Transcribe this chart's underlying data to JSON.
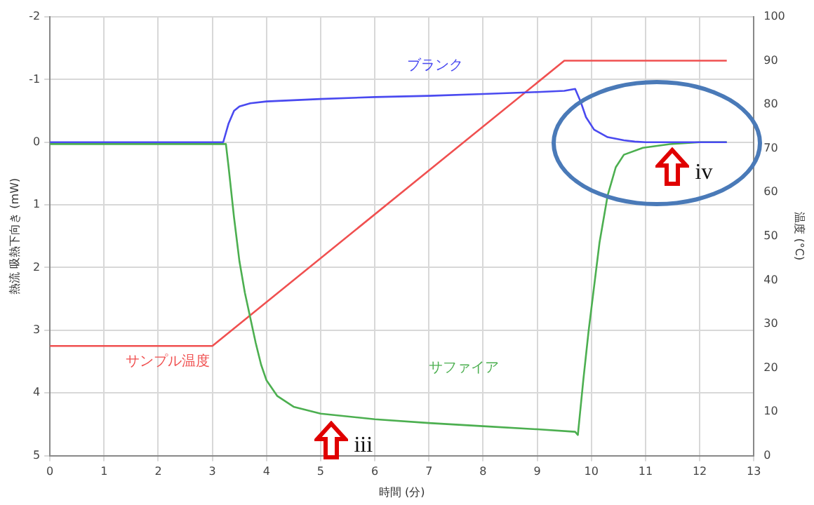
{
  "chart_data": {
    "type": "line",
    "xlabel": "時間 (分)",
    "ylabel": "熱流 吸熱下向き (mW)",
    "y2label": "温度 (°C)",
    "xlim": [
      0,
      13
    ],
    "xticks": [
      0,
      1,
      2,
      3,
      4,
      5,
      6,
      7,
      8,
      9,
      10,
      11,
      12,
      13
    ],
    "ylim": [
      5,
      -2
    ],
    "yticks": [
      -2,
      -1,
      0,
      1,
      2,
      3,
      4,
      5
    ],
    "y2lim": [
      0,
      100
    ],
    "y2ticks": [
      0,
      10,
      20,
      30,
      40,
      50,
      60,
      70,
      80,
      90,
      100
    ],
    "grid": true,
    "legend": false,
    "marker": "none",
    "line_style": "solid",
    "series": [
      {
        "name": "ブランク",
        "color": "#4a4af0",
        "axis": "y",
        "x": [
          0,
          1,
          2,
          3,
          3.2,
          3.3,
          3.4,
          3.5,
          3.7,
          4,
          5,
          6,
          7,
          8,
          9,
          9.5,
          9.7,
          9.8,
          9.9,
          10.05,
          10.3,
          10.6,
          10.8,
          11,
          12,
          12.5
        ],
        "values": [
          0,
          0,
          0,
          0,
          0,
          -0.3,
          -0.5,
          -0.57,
          -0.62,
          -0.65,
          -0.69,
          -0.72,
          -0.74,
          -0.77,
          -0.8,
          -0.82,
          -0.85,
          -0.65,
          -0.4,
          -0.2,
          -0.08,
          -0.03,
          -0.01,
          0,
          0,
          0
        ]
      },
      {
        "name": "サファイア",
        "color": "#4caf50",
        "axis": "y",
        "x": [
          0,
          1,
          2,
          3,
          3.25,
          3.3,
          3.4,
          3.5,
          3.6,
          3.7,
          3.8,
          3.9,
          4,
          4.2,
          4.5,
          5,
          6,
          7,
          8,
          9,
          9.7,
          9.75,
          9.85,
          9.95,
          10.05,
          10.15,
          10.3,
          10.45,
          10.6,
          10.95,
          11.45,
          12,
          12.5
        ],
        "values": [
          0.03,
          0.03,
          0.03,
          0.03,
          0.03,
          0.4,
          1.2,
          1.9,
          2.4,
          2.8,
          3.2,
          3.55,
          3.8,
          4.05,
          4.22,
          4.33,
          4.42,
          4.48,
          4.53,
          4.58,
          4.62,
          4.67,
          3.8,
          3,
          2.3,
          1.6,
          0.85,
          0.4,
          0.2,
          0.09,
          0.03,
          0,
          0
        ]
      },
      {
        "name": "サンプル温度",
        "color": "#f05050",
        "axis": "y2",
        "x": [
          0,
          3,
          9.5,
          12.5
        ],
        "values": [
          25,
          25,
          90,
          90
        ]
      }
    ],
    "annotations": [
      {
        "text": "iii",
        "x": 5.2,
        "y": 4.35
      },
      {
        "text": "iv",
        "x": 11.5,
        "y": 0
      }
    ]
  }
}
